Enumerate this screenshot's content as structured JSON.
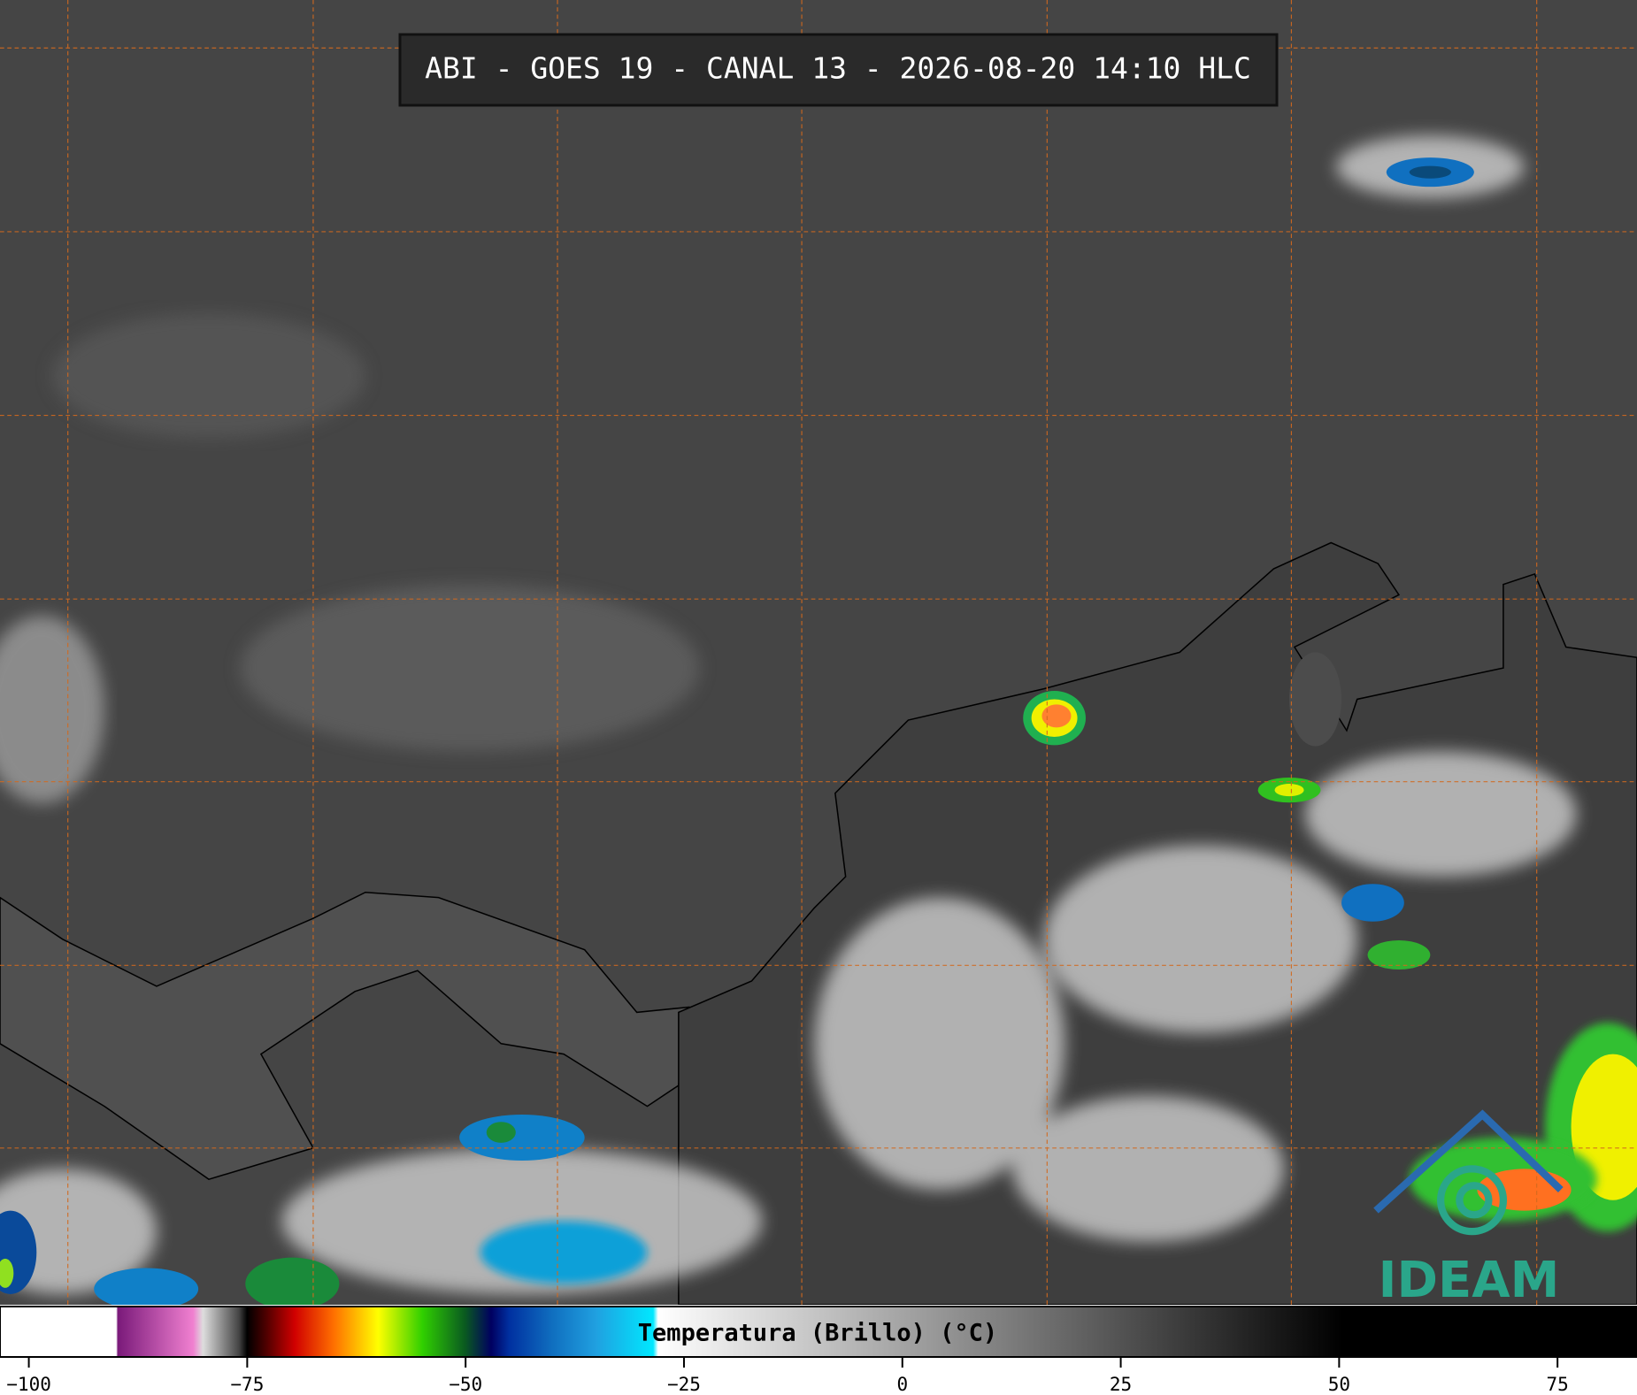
{
  "title": "ABI - GOES 19 - CANAL 13 - 2026-08-20 14:10 HLC",
  "colorbar": {
    "label": "Temperatura (Brillo) (°C)",
    "range": [
      -103.3,
      84.1
    ],
    "ticks": [
      {
        "value": -100,
        "label": "−100"
      },
      {
        "value": -75,
        "label": "−75"
      },
      {
        "value": -50,
        "label": "−50"
      },
      {
        "value": -25,
        "label": "−25"
      },
      0,
      25,
      50,
      75
    ]
  },
  "logo": "IDEAM"
}
